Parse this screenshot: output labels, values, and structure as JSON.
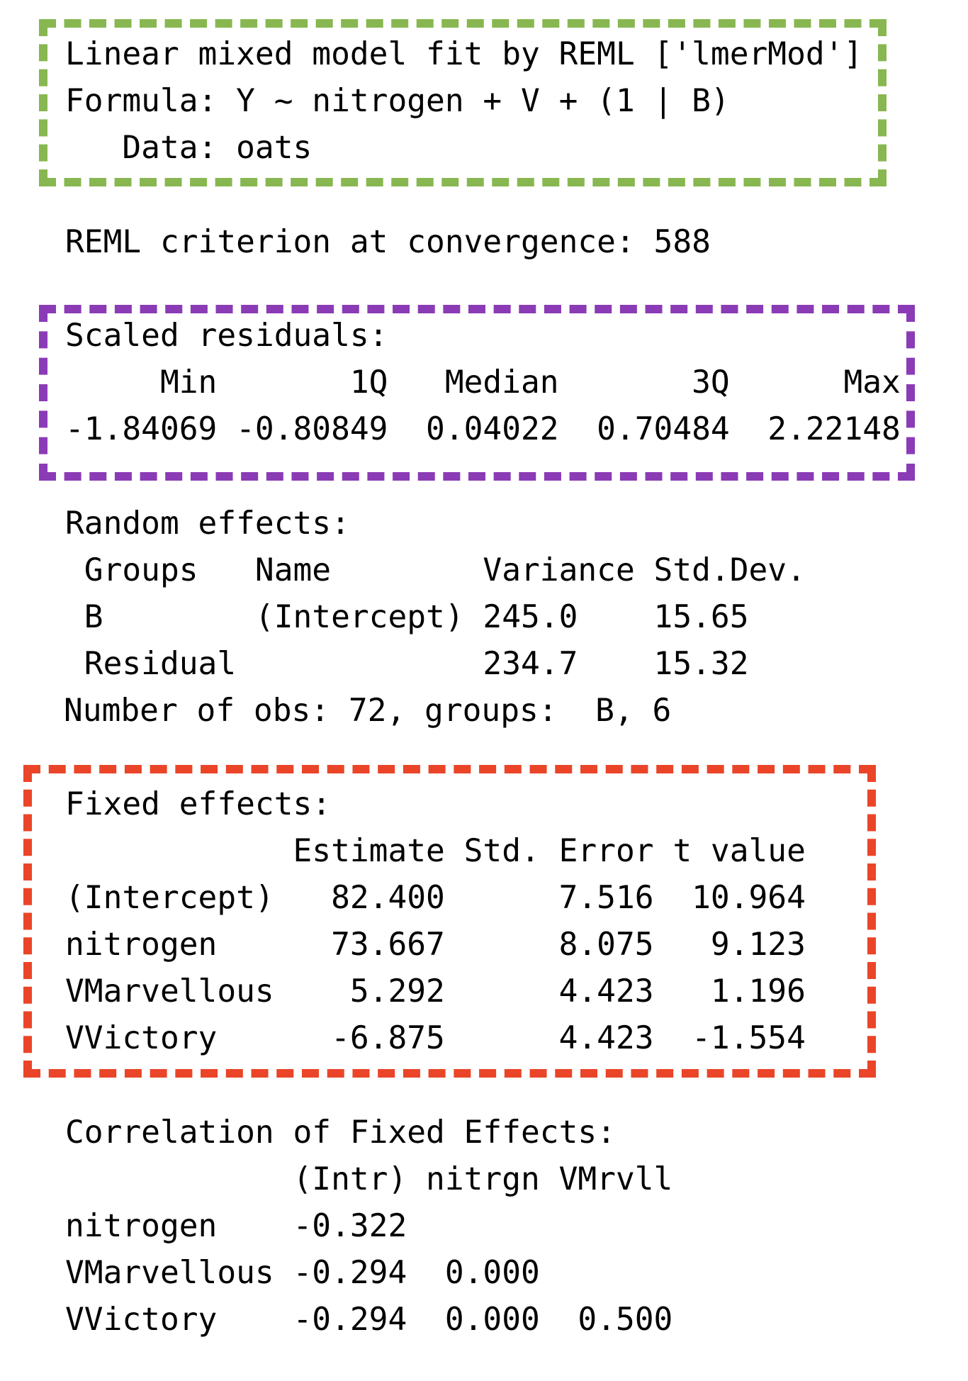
{
  "colors": {
    "header_box": "#88b751",
    "residuals_box": "#8b3bb5",
    "fixed_box": "#ea4528",
    "text": "#000000"
  },
  "header": {
    "lines": [
      "Linear mixed model fit by REML ['lmerMod']",
      "Formula: Y ~ nitrogen + V + (1 | B)",
      "   Data: oats"
    ]
  },
  "reml": {
    "line": "REML criterion at convergence: 588"
  },
  "scaled_residuals": {
    "title": "Scaled residuals:",
    "header_line": "     Min       1Q   Median       3Q      Max",
    "values_line": "-1.84069 -0.80849  0.04022  0.70484  2.22148"
  },
  "random_effects": {
    "title": "Random effects:",
    "header_line": " Groups   Name        Variance Std.Dev.",
    "rows": [
      " B        (Intercept) 245.0    15.65   ",
      " Residual             234.7    15.32   "
    ],
    "obs_line": "Number of obs: 72, groups:  B, 6"
  },
  "fixed_effects": {
    "title": "Fixed effects:",
    "header_line": "            Estimate Std. Error t value",
    "rows": [
      "(Intercept)   82.400      7.516  10.964",
      "nitrogen      73.667      8.075   9.123",
      "VMarvellous    5.292      4.423   1.196",
      "VVictory      -6.875      4.423  -1.554"
    ]
  },
  "correlation": {
    "title": "Correlation of Fixed Effects:",
    "header_line": "            (Intr) nitrgn VMrvll",
    "rows": [
      "nitrogen    -0.322              ",
      "VMarvellous -0.294  0.000       ",
      "VVictory    -0.294  0.000  0.500"
    ]
  }
}
